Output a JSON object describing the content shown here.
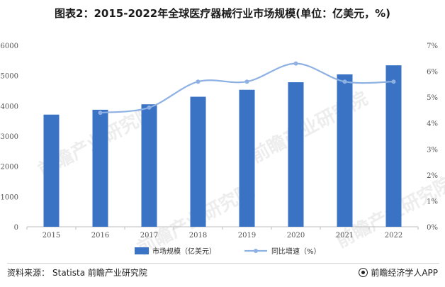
{
  "title": "图表2：2015-2022年全球医疗器械行业市场规模(单位：亿美元，%)",
  "source": {
    "label": "资料来源：",
    "text": "Statista 前瞻产业研究院"
  },
  "brand": {
    "name": "前瞻经济学人APP",
    "icon": "qianzhan-logo-icon"
  },
  "watermark": "前瞻产业研究院",
  "colors": {
    "bar": "#3a72c4",
    "line": "#8eb1e3",
    "axis": "#bdbdbd"
  },
  "chart_data": {
    "type": "bar",
    "categories": [
      "2015",
      "2016",
      "2017",
      "2018",
      "2019",
      "2020",
      "2021",
      "2022"
    ],
    "series": [
      {
        "name": "市场规模（亿美元）",
        "type": "bar",
        "axis": "left",
        "values": [
          3710,
          3870,
          4050,
          4300,
          4530,
          4780,
          5040,
          5340
        ]
      },
      {
        "name": "同比增速（%）",
        "type": "line",
        "axis": "right",
        "values": [
          null,
          4.4,
          4.6,
          5.6,
          5.6,
          6.3,
          5.6,
          5.6
        ]
      }
    ],
    "y_left": {
      "ylim": [
        0,
        6000
      ],
      "ticks": [
        "0",
        "1000",
        "2000",
        "3000",
        "4000",
        "5000",
        "6000"
      ]
    },
    "y_right": {
      "ylim": [
        0,
        7
      ],
      "ticks": [
        "0%",
        "1%",
        "2%",
        "3%",
        "4%",
        "5%",
        "6%",
        "7%"
      ]
    },
    "legend_position": "bottom",
    "grid": false
  }
}
